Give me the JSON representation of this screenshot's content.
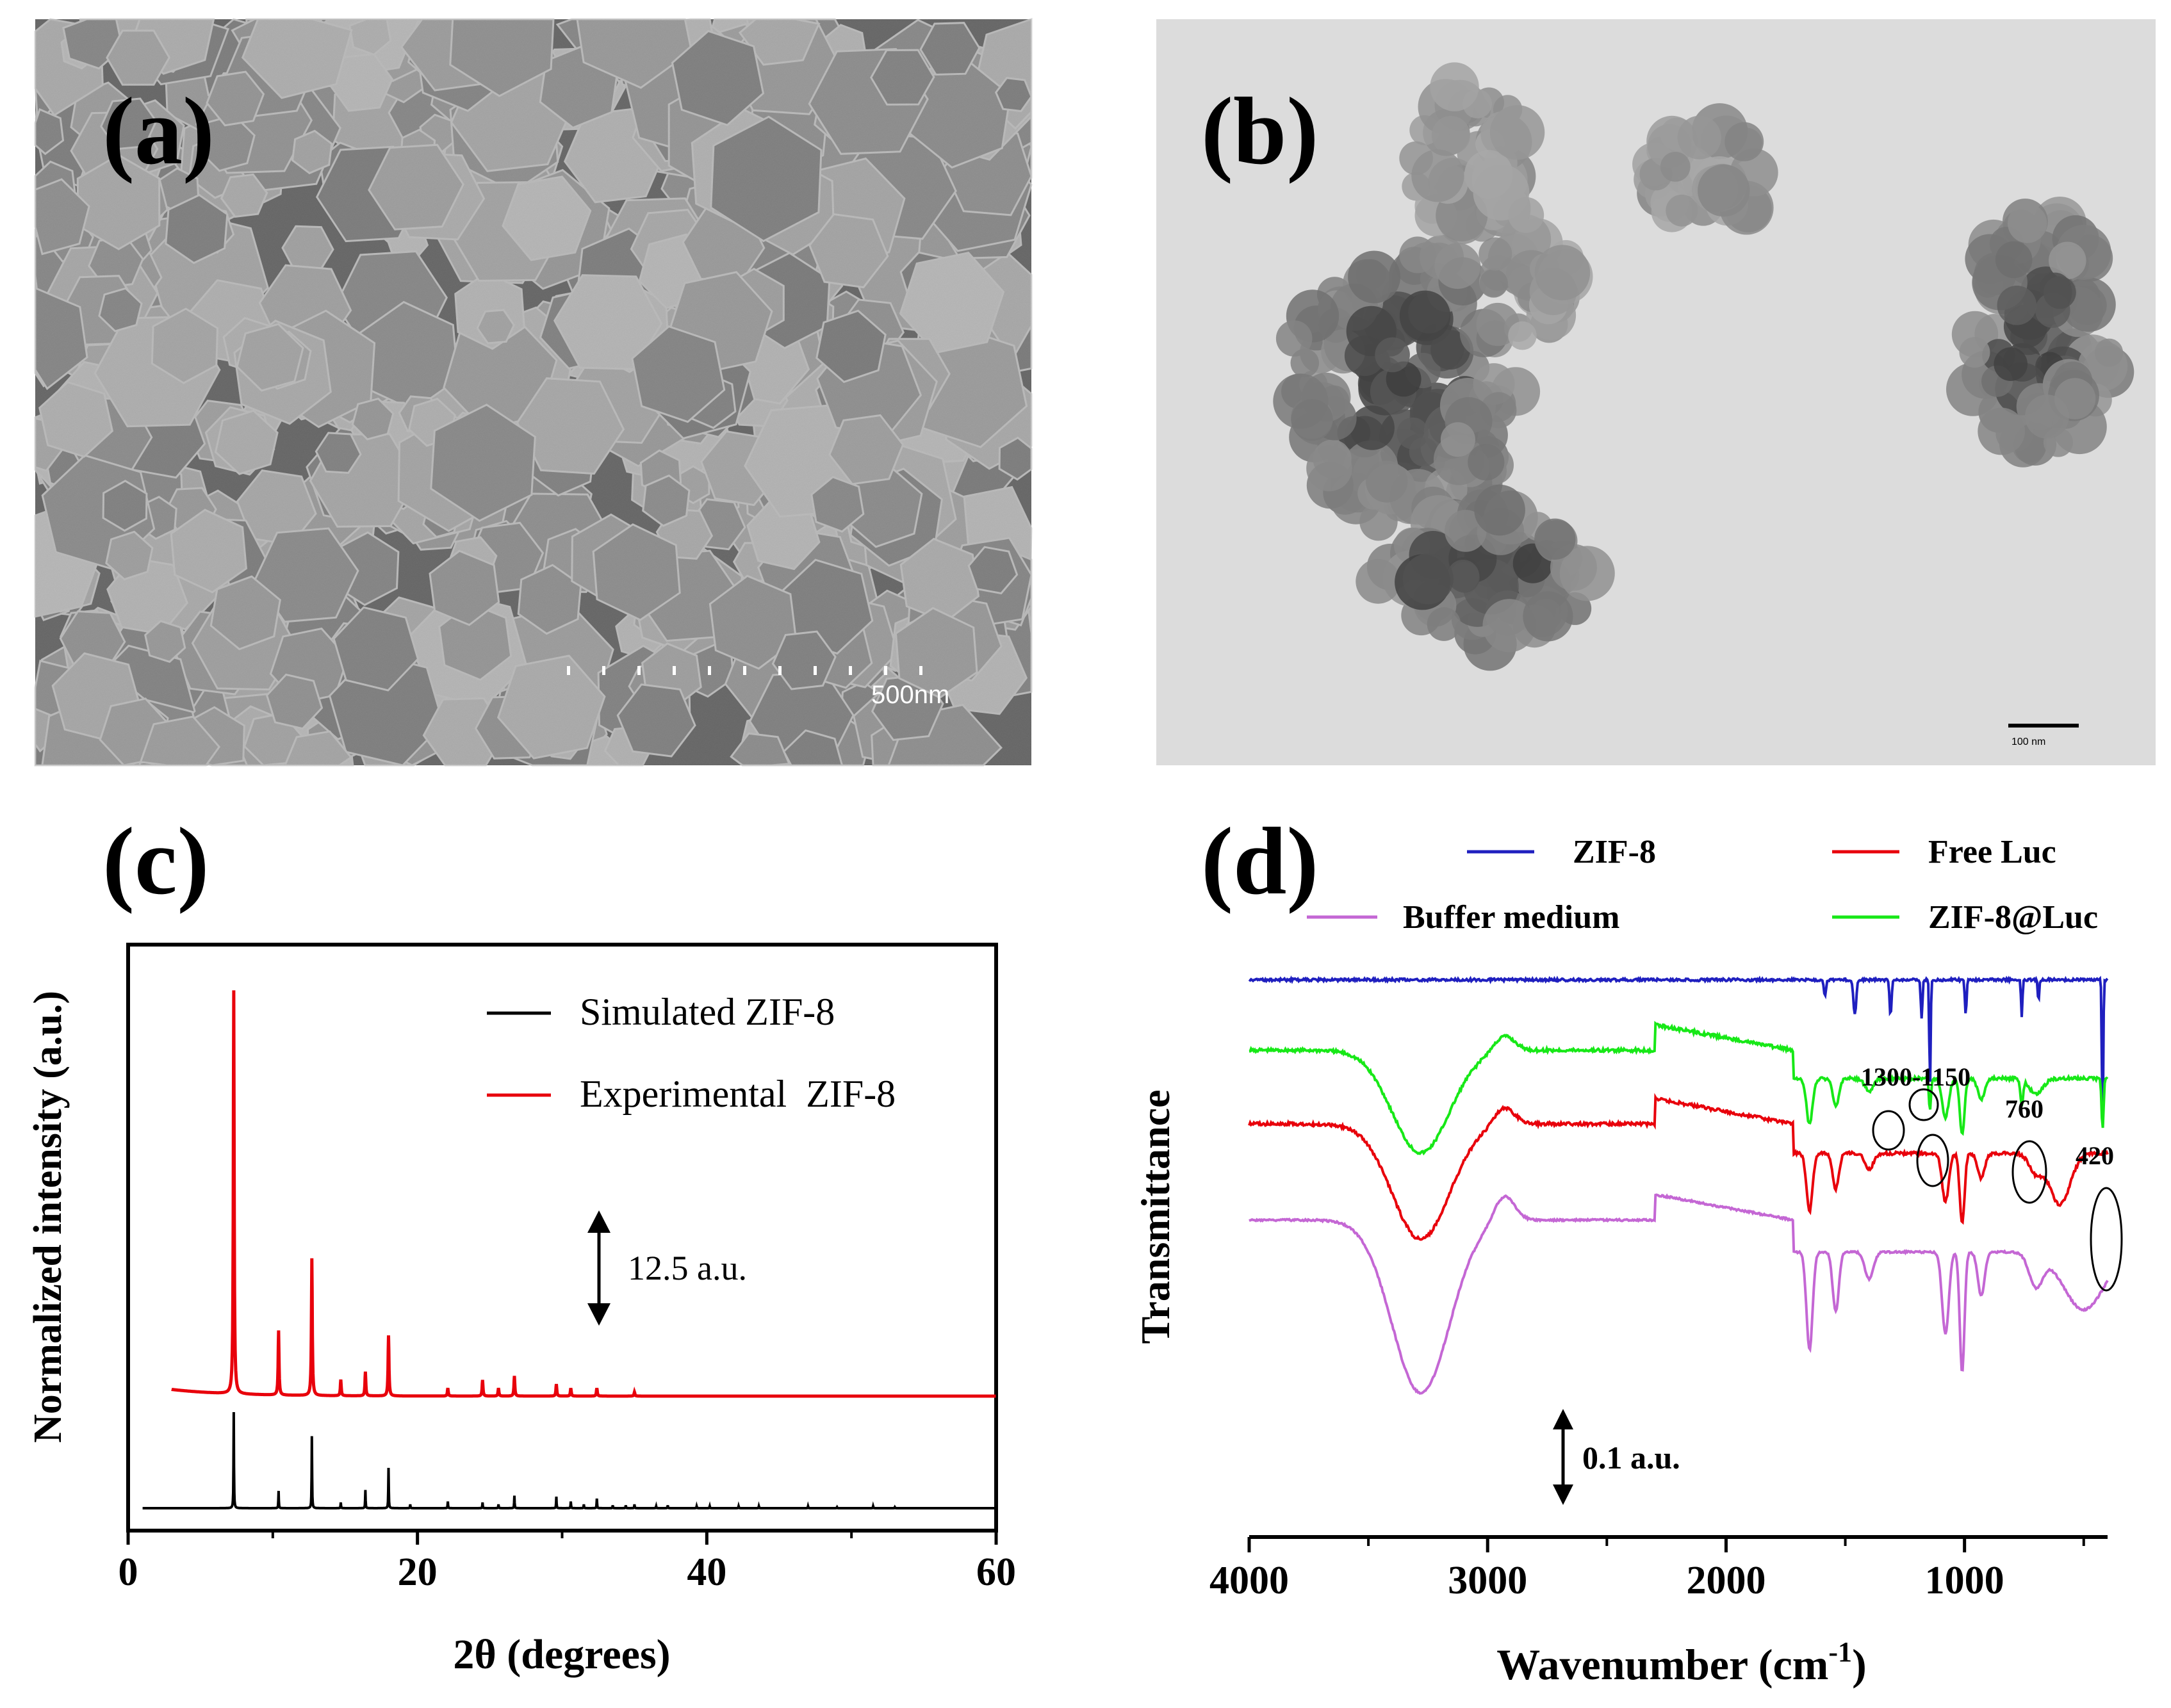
{
  "panels": {
    "a": {
      "label": "(a)",
      "scale_bar": "500nm"
    },
    "b": {
      "label": "(b)",
      "scale_bar": "100 nm"
    },
    "c": {
      "label": "(c)"
    },
    "d": {
      "label": "(d)"
    }
  },
  "chart_data": [
    {
      "type": "line",
      "panel": "c",
      "xlabel": "2θ (degrees)",
      "ylabel": "Normalized intensity (a.u.)",
      "xlim": [
        0,
        60
      ],
      "xticks": [
        0,
        20,
        40,
        60
      ],
      "legend_position": "top-right",
      "scale_annotation": "12.5 a.u.",
      "colors": {
        "simulated": "#000000",
        "experimental": "#e8000b"
      },
      "series": [
        {
          "name": "Simulated ZIF-8",
          "peaks": [
            [
              7.3,
              100
            ],
            [
              10.4,
              18
            ],
            [
              12.7,
              75
            ],
            [
              14.7,
              6
            ],
            [
              16.4,
              19
            ],
            [
              18.0,
              42
            ],
            [
              19.5,
              4
            ],
            [
              22.1,
              7
            ],
            [
              24.5,
              6
            ],
            [
              25.6,
              4
            ],
            [
              26.7,
              13
            ],
            [
              29.6,
              12
            ],
            [
              30.6,
              7
            ],
            [
              31.5,
              4
            ],
            [
              32.4,
              10
            ],
            [
              33.5,
              3
            ],
            [
              34.4,
              3
            ],
            [
              35.0,
              4
            ],
            [
              36.5,
              2
            ],
            [
              37.3,
              3
            ],
            [
              39.3,
              2
            ],
            [
              40.2,
              2
            ],
            [
              42.2,
              2
            ],
            [
              43.6,
              2
            ],
            [
              47.0,
              2
            ],
            [
              49.0,
              1
            ],
            [
              51.5,
              2
            ],
            [
              53.0,
              1
            ]
          ]
        },
        {
          "name": "Experimental  ZIF-8",
          "start_x": 3,
          "peaks": [
            [
              7.3,
              100
            ],
            [
              10.4,
              16
            ],
            [
              12.7,
              34
            ],
            [
              14.7,
              4
            ],
            [
              16.4,
              6
            ],
            [
              18.0,
              15
            ],
            [
              22.1,
              2
            ],
            [
              24.5,
              4
            ],
            [
              25.6,
              2
            ],
            [
              26.7,
              5
            ],
            [
              29.6,
              3
            ],
            [
              30.6,
              2
            ],
            [
              32.4,
              2
            ],
            [
              35.0,
              1
            ]
          ]
        }
      ]
    },
    {
      "type": "line",
      "panel": "d",
      "xlabel": "Wavenumber (cm",
      "xlabel_sup": "-1",
      "xlabel_end": ")",
      "ylabel": "Transmittance",
      "xlim": [
        4000,
        400
      ],
      "xticks": [
        4000,
        3000,
        2000,
        1000
      ],
      "legend_position": "top",
      "scale_annotation": "0.1 a.u.",
      "annotations": [
        "1300-1150",
        "760",
        "420"
      ],
      "colors": {
        "zif8": "#1f1fbf",
        "free_luc": "#e8000b",
        "buffer": "#c467d4",
        "zif8_luc": "#17e817"
      },
      "series": [
        {
          "name": "ZIF-8"
        },
        {
          "name": "Free Luc"
        },
        {
          "name": "Buffer medium"
        },
        {
          "name": "ZIF-8@Luc"
        }
      ]
    }
  ]
}
